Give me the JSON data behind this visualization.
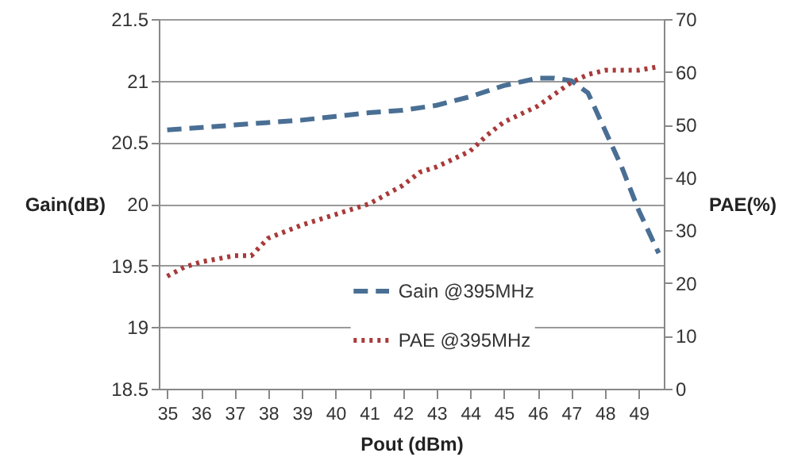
{
  "chart_data": {
    "type": "line",
    "xlabel": "Pout (dBm)",
    "ylabel": "Gain(dB)",
    "y2label": "PAE(%)",
    "xlim": [
      34.75,
      49.75
    ],
    "xticks": [
      35,
      36,
      37,
      38,
      39,
      40,
      41,
      42,
      43,
      44,
      45,
      46,
      47,
      48,
      49
    ],
    "ylim": [
      18.5,
      21.5
    ],
    "yticks": [
      18.5,
      19,
      19.5,
      20,
      20.5,
      21,
      21.5
    ],
    "y2lim": [
      0,
      70
    ],
    "y2ticks": [
      0,
      10,
      20,
      30,
      40,
      50,
      60,
      70
    ],
    "grid": "y",
    "legend": "bottom",
    "marker": "none",
    "series": [
      {
        "name": "Gain @395MHz",
        "color": "#4a6f94",
        "line_style": "dashed",
        "x": [
          35,
          36,
          37,
          38,
          39,
          40,
          41,
          42,
          43,
          44,
          45,
          46,
          46.5,
          47,
          47.5,
          48,
          48.5,
          49,
          49.6
        ],
        "values": [
          20.6,
          20.62,
          20.64,
          20.66,
          20.68,
          20.71,
          20.74,
          20.76,
          20.8,
          20.87,
          20.96,
          21.02,
          21.02,
          21.0,
          20.9,
          20.6,
          20.3,
          19.95,
          19.6
        ]
      },
      {
        "name": "PAE @395MHz",
        "color": "#a93a3a",
        "line_style": "dotted",
        "axis": "y2",
        "x": [
          35,
          35.5,
          36,
          37,
          37.5,
          38,
          39,
          40,
          41,
          42,
          42.5,
          43,
          44,
          44.5,
          45,
          46,
          47,
          47.5,
          48,
          49,
          49.6
        ],
        "values": [
          21.3,
          23,
          24,
          25.2,
          25.2,
          28.5,
          31,
          33,
          35,
          38.5,
          41,
          42,
          45,
          48,
          50.5,
          53.5,
          58,
          59.5,
          60.3,
          60.3,
          61
        ]
      }
    ]
  }
}
